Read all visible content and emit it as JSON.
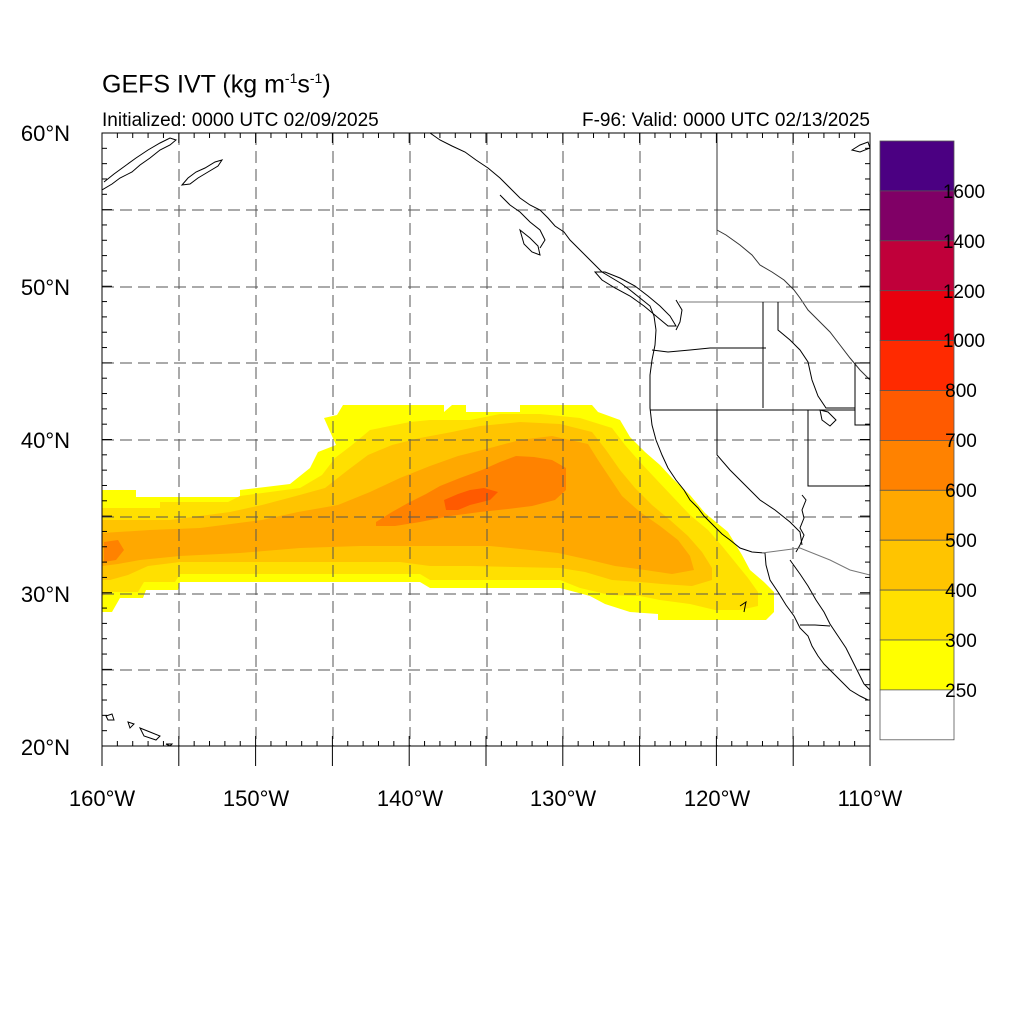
{
  "title": {
    "main": "GEFS IVT (kg m",
    "exp1": "-1",
    "mid": "s",
    "exp2": "-1",
    "end": ")"
  },
  "initialized": "Initialized: 0000 UTC 02/09/2025",
  "valid": "F-96: Valid: 0000 UTC 02/13/2025",
  "axes": {
    "lon_labels": [
      "160°W",
      "150°W",
      "140°W",
      "130°W",
      "120°W",
      "110°W"
    ],
    "lat_labels": [
      "60°N",
      "50°N",
      "40°N",
      "30°N",
      "20°N"
    ]
  },
  "colorbar": {
    "labels": [
      "1600",
      "1400",
      "1200",
      "1000",
      "800",
      "700",
      "600",
      "500",
      "400",
      "300",
      "250"
    ],
    "colors": [
      "#4B0082",
      "#800066",
      "#C0003A",
      "#E8000E",
      "#FF2A00",
      "#FF5A00",
      "#FF8200",
      "#FFA800",
      "#FFC400",
      "#FFE000",
      "#FFFF00",
      "#FFFFFF"
    ]
  },
  "colors": {
    "c250": "#FFFF00",
    "c300": "#FFE000",
    "c400": "#FFC400",
    "c500": "#FFA800",
    "c600": "#FF8200",
    "c700": "#FF5A00"
  }
}
